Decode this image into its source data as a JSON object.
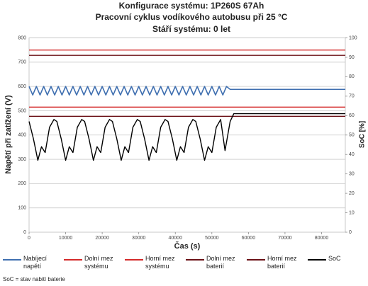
{
  "chart_data": {
    "type": "line",
    "title": [
      "Konfigurace systému: 1P260S 67Ah",
      "Pracovní cyklus vodíkového autobusu při 25 °C",
      "Stáří systému: 0 let"
    ],
    "xlabel": "Čas (s)",
    "ylabel": "Napětí při zatížení (V)",
    "y2label": "SoC [%]",
    "xlim": [
      0,
      86500
    ],
    "xticks": [
      0,
      10000,
      20000,
      30000,
      40000,
      50000,
      60000,
      70000,
      80000
    ],
    "ylim": [
      0,
      800
    ],
    "yticks": [
      0,
      100,
      200,
      300,
      400,
      500,
      600,
      700,
      800
    ],
    "y2lim": [
      0,
      100
    ],
    "y2ticks": [
      0,
      10,
      20,
      30,
      40,
      50,
      60,
      70,
      80,
      90,
      100
    ],
    "grid": true,
    "series": [
      {
        "name": "Nabíjecí napětí",
        "color": "#3f6fb0",
        "x": [
          0,
          1000,
          2000,
          3000,
          4000,
          5000,
          6000,
          7000,
          8000,
          9000,
          10000,
          11000,
          12000,
          13000,
          14000,
          15000,
          16000,
          17000,
          18000,
          19000,
          20000,
          21000,
          22000,
          23000,
          24000,
          25000,
          26000,
          27000,
          28000,
          29000,
          30000,
          31000,
          32000,
          33000,
          34000,
          35000,
          36000,
          37000,
          38000,
          39000,
          40000,
          41000,
          42000,
          43000,
          44000,
          45000,
          46000,
          47000,
          48000,
          49000,
          50000,
          51000,
          52000,
          53000,
          54000,
          55000,
          86500
        ],
        "values": [
          600,
          565,
          600,
          565,
          600,
          565,
          600,
          565,
          600,
          565,
          600,
          565,
          600,
          565,
          600,
          565,
          600,
          565,
          600,
          565,
          600,
          565,
          600,
          565,
          600,
          565,
          600,
          565,
          600,
          565,
          600,
          565,
          600,
          565,
          600,
          565,
          600,
          565,
          600,
          565,
          600,
          565,
          600,
          565,
          600,
          565,
          600,
          565,
          600,
          565,
          600,
          565,
          600,
          565,
          600,
          588,
          588
        ]
      },
      {
        "name": "Dolní mez systému",
        "color": "#d42a2a",
        "x": [
          0,
          86500
        ],
        "values": [
          515,
          515
        ]
      },
      {
        "name": "Horní mez systému",
        "color": "#d42a2a",
        "x": [
          0,
          86500
        ],
        "values": [
          750,
          750
        ]
      },
      {
        "name": "Dolní mez baterií",
        "color": "#6b1016",
        "x": [
          0,
          86500
        ],
        "values": [
          477,
          477
        ]
      },
      {
        "name": "Horní mez baterií",
        "color": "#6b1016",
        "x": [
          0,
          86500
        ],
        "values": [
          728,
          728
        ]
      },
      {
        "name": "SoC",
        "color": "#000000",
        "axis": "y2",
        "x": [
          0,
          1200,
          2400,
          3400,
          4400,
          5600,
          6800,
          7600,
          8800,
          10000,
          11000,
          12000,
          13200,
          14400,
          15200,
          16400,
          17600,
          18600,
          19600,
          20800,
          22000,
          22800,
          24000,
          25200,
          26200,
          27200,
          28400,
          29600,
          30400,
          31600,
          32800,
          33800,
          34800,
          36000,
          37200,
          38000,
          39200,
          40400,
          41400,
          42400,
          43600,
          44800,
          45600,
          46800,
          48000,
          49000,
          50000,
          51200,
          52400,
          53600,
          55000,
          56000,
          86500
        ],
        "values": [
          57,
          48,
          37,
          44,
          41,
          54,
          58,
          57,
          48,
          37,
          44,
          41,
          54,
          58,
          57,
          48,
          37,
          44,
          41,
          54,
          58,
          57,
          48,
          37,
          44,
          41,
          54,
          58,
          57,
          48,
          37,
          44,
          41,
          54,
          58,
          57,
          48,
          37,
          44,
          41,
          54,
          58,
          57,
          48,
          37,
          44,
          41,
          54,
          58,
          42,
          57,
          61,
          61
        ]
      }
    ],
    "note": "SoC = stav nabití baterie"
  }
}
